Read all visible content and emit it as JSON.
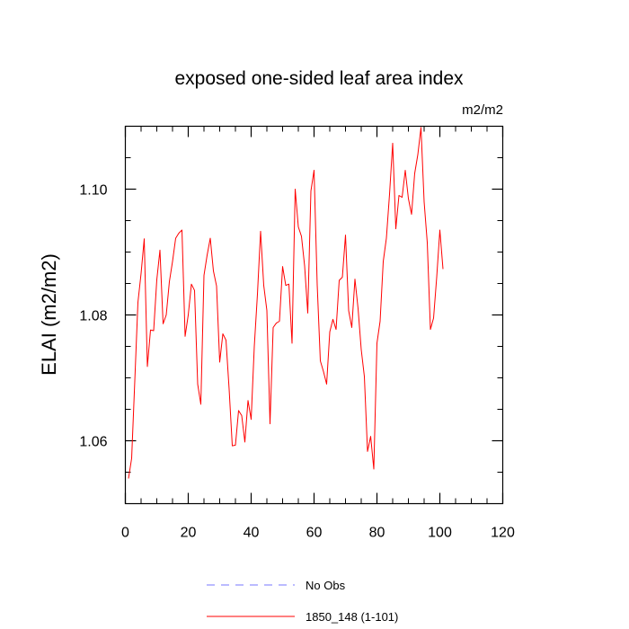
{
  "chart_data": {
    "type": "line",
    "title": "exposed one-sided leaf area index",
    "units": "m2/m2",
    "ylabel": "ELAI  (m2/m2)",
    "xlabel": "",
    "xlim": [
      0,
      120
    ],
    "ylim": [
      1.05,
      1.11
    ],
    "xticks": [
      0,
      20,
      40,
      60,
      80,
      100,
      120
    ],
    "xtick_labels": [
      "0",
      "20",
      "40",
      "60",
      "80",
      "100",
      "120"
    ],
    "yticks": [
      1.06,
      1.08,
      1.1
    ],
    "ytick_labels": [
      "1.06",
      "1.08",
      "1.10"
    ],
    "grid": false,
    "legend": [
      {
        "label": "No Obs",
        "color": "#7777ff",
        "style": "dashed"
      },
      {
        "label": "1850_148 (1-101)",
        "color": "#ff0000",
        "style": "solid"
      }
    ],
    "series": [
      {
        "name": "1850_148 (1-101)",
        "color": "#ff0000",
        "x": [
          1,
          2,
          3,
          4,
          5,
          6,
          7,
          8,
          9,
          10,
          11,
          12,
          13,
          14,
          15,
          16,
          17,
          18,
          19,
          20,
          21,
          22,
          23,
          24,
          25,
          26,
          27,
          28,
          29,
          30,
          31,
          32,
          33,
          34,
          35,
          36,
          37,
          38,
          39,
          40,
          41,
          42,
          43,
          44,
          45,
          46,
          47,
          48,
          49,
          50,
          51,
          52,
          53,
          54,
          55,
          56,
          57,
          58,
          59,
          60,
          61,
          62,
          63,
          64,
          65,
          66,
          67,
          68,
          69,
          70,
          71,
          72,
          73,
          74,
          75,
          76,
          77,
          78,
          79,
          80,
          81,
          82,
          83,
          84,
          85,
          86,
          87,
          88,
          89,
          90,
          91,
          92,
          93,
          94,
          95,
          96,
          97,
          98,
          99,
          100,
          101
        ],
        "values": [
          1.054,
          1.0572,
          1.0695,
          1.082,
          1.0866,
          1.0921,
          1.0718,
          1.0776,
          1.0775,
          1.0856,
          1.0903,
          1.0786,
          1.08,
          1.0853,
          1.0885,
          1.0922,
          1.093,
          1.0935,
          1.0766,
          1.08,
          1.0849,
          1.0839,
          1.069,
          1.0658,
          1.0863,
          1.0895,
          1.0922,
          1.087,
          1.0846,
          1.0725,
          1.077,
          1.076,
          1.0682,
          1.0592,
          1.0593,
          1.0648,
          1.064,
          1.0598,
          1.0664,
          1.0634,
          1.075,
          1.0833,
          1.0933,
          1.0847,
          1.0807,
          1.0627,
          1.078,
          1.0787,
          1.079,
          1.0877,
          1.0847,
          1.0849,
          1.0755,
          1.1,
          1.094,
          1.0925,
          1.0878,
          1.0803,
          1.0997,
          1.103,
          1.0848,
          1.0727,
          1.071,
          1.069,
          1.0773,
          1.0793,
          1.0777,
          1.0855,
          1.086,
          1.0927,
          1.0807,
          1.078,
          1.0857,
          1.081,
          1.0745,
          1.0702,
          1.0583,
          1.0607,
          1.0555,
          1.0755,
          1.079,
          1.0885,
          1.0922,
          1.0992,
          1.1073,
          1.0937,
          1.099,
          1.0987,
          1.103,
          1.0985,
          1.096,
          1.1025,
          1.1055,
          1.1098,
          1.098,
          1.0915,
          1.0777,
          1.0795,
          1.086,
          1.0935,
          1.0873
        ]
      }
    ]
  }
}
